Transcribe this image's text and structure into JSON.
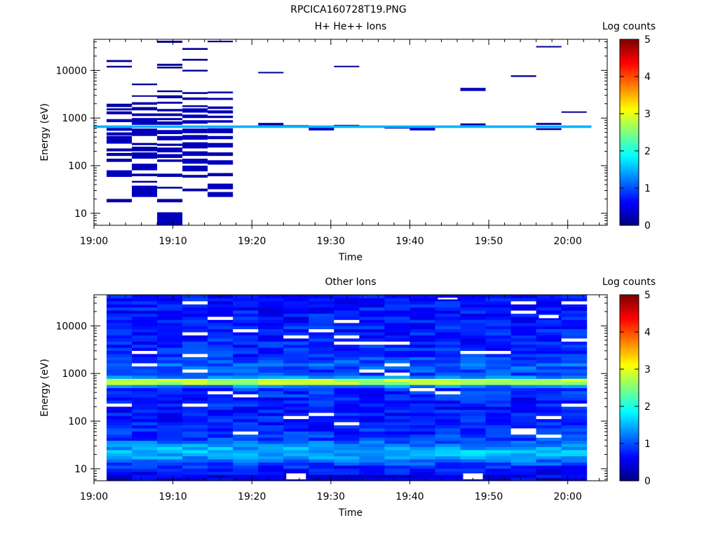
{
  "figure_title": "RPCICA160728T19.PNG",
  "colormap": [
    "#00007f",
    "#0000ff",
    "#007fff",
    "#00ffff",
    "#7fff7f",
    "#ffff00",
    "#ff7f00",
    "#ff0000",
    "#7f0000"
  ],
  "chart_data": [
    {
      "type": "heatmap",
      "title": "H+ He++ Ions",
      "xlabel": "Time",
      "ylabel": "Energy (eV)",
      "y_scale": "log",
      "x_range_min": [
        0,
        65
      ],
      "y_range_ev": [
        5.6,
        45000
      ],
      "x_ticks": [
        {
          "min": 0,
          "label": "19:00"
        },
        {
          "min": 10,
          "label": "19:10"
        },
        {
          "min": 20,
          "label": "19:20"
        },
        {
          "min": 30,
          "label": "19:30"
        },
        {
          "min": 40,
          "label": "19:40"
        },
        {
          "min": 50,
          "label": "19:50"
        },
        {
          "min": 60,
          "label": "20:00"
        }
      ],
      "y_ticks": [
        {
          "ev": 10,
          "label": "10"
        },
        {
          "ev": 100,
          "label": "100"
        },
        {
          "ev": 1000,
          "label": "1000"
        },
        {
          "ev": 10000,
          "label": "10000"
        }
      ],
      "colorbar": {
        "label": "Log counts",
        "range": [
          0,
          5
        ],
        "ticks": [
          "0",
          "1",
          "2",
          "3",
          "4",
          "5"
        ]
      },
      "bands": [
        {
          "e_lo": 620,
          "e_hi": 700,
          "t0": 0,
          "t1": 63,
          "v": 1.5
        }
      ],
      "cells": [
        {
          "t0": 1.6,
          "t1": 4.8,
          "e_lo": 15000,
          "e_hi": 16500,
          "v": 0.1
        },
        {
          "t0": 1.6,
          "t1": 4.8,
          "e_lo": 11500,
          "e_hi": 12500,
          "v": 0.1
        },
        {
          "t0": 1.6,
          "t1": 4.8,
          "e_lo": 1700,
          "e_hi": 2000,
          "v": 0.2
        },
        {
          "t0": 1.6,
          "t1": 4.8,
          "e_lo": 1450,
          "e_hi": 1600,
          "v": 0.2
        },
        {
          "t0": 1.6,
          "t1": 4.8,
          "e_lo": 1200,
          "e_hi": 1380,
          "v": 0.2
        },
        {
          "t0": 1.6,
          "t1": 4.8,
          "e_lo": 820,
          "e_hi": 950,
          "v": 0.3
        },
        {
          "t0": 1.6,
          "t1": 4.8,
          "e_lo": 540,
          "e_hi": 620,
          "v": 0.3
        },
        {
          "t0": 1.6,
          "t1": 4.8,
          "e_lo": 430,
          "e_hi": 500,
          "v": 0.3
        },
        {
          "t0": 1.6,
          "t1": 4.8,
          "e_lo": 290,
          "e_hi": 420,
          "v": 0.3
        },
        {
          "t0": 1.6,
          "t1": 4.8,
          "e_lo": 200,
          "e_hi": 230,
          "v": 0.2
        },
        {
          "t0": 1.6,
          "t1": 4.8,
          "e_lo": 160,
          "e_hi": 185,
          "v": 0.2
        },
        {
          "t0": 1.6,
          "t1": 4.8,
          "e_lo": 120,
          "e_hi": 140,
          "v": 0.2
        },
        {
          "t0": 1.6,
          "t1": 4.8,
          "e_lo": 58,
          "e_hi": 80,
          "v": 0.3
        },
        {
          "t0": 1.6,
          "t1": 4.8,
          "e_lo": 17,
          "e_hi": 20,
          "v": 0.2
        },
        {
          "t0": 4.8,
          "t1": 8.0,
          "e_lo": 4900,
          "e_hi": 5300,
          "v": 0.1
        },
        {
          "t0": 4.8,
          "t1": 8.0,
          "e_lo": 2800,
          "e_hi": 3000,
          "v": 0.1
        },
        {
          "t0": 4.8,
          "t1": 8.0,
          "e_lo": 1900,
          "e_hi": 2150,
          "v": 0.2
        },
        {
          "t0": 4.8,
          "t1": 8.0,
          "e_lo": 1450,
          "e_hi": 1700,
          "v": 0.2
        },
        {
          "t0": 4.8,
          "t1": 8.0,
          "e_lo": 1100,
          "e_hi": 1250,
          "v": 0.2
        },
        {
          "t0": 4.8,
          "t1": 8.0,
          "e_lo": 720,
          "e_hi": 1000,
          "v": 0.3
        },
        {
          "t0": 4.8,
          "t1": 8.0,
          "e_lo": 420,
          "e_hi": 600,
          "v": 0.3
        },
        {
          "t0": 4.8,
          "t1": 8.0,
          "e_lo": 270,
          "e_hi": 300,
          "v": 0.2
        },
        {
          "t0": 4.8,
          "t1": 8.0,
          "e_lo": 200,
          "e_hi": 250,
          "v": 0.2
        },
        {
          "t0": 4.8,
          "t1": 8.0,
          "e_lo": 140,
          "e_hi": 190,
          "v": 0.3
        },
        {
          "t0": 4.8,
          "t1": 8.0,
          "e_lo": 80,
          "e_hi": 110,
          "v": 0.3
        },
        {
          "t0": 4.8,
          "t1": 8.0,
          "e_lo": 60,
          "e_hi": 68,
          "v": 0.2
        },
        {
          "t0": 4.8,
          "t1": 8.0,
          "e_lo": 44,
          "e_hi": 48,
          "v": 0.2
        },
        {
          "t0": 4.8,
          "t1": 8.0,
          "e_lo": 22,
          "e_hi": 38,
          "v": 0.3
        },
        {
          "t0": 8.0,
          "t1": 11.2,
          "e_lo": 38000,
          "e_hi": 42000,
          "v": 0.1
        },
        {
          "t0": 8.0,
          "t1": 11.2,
          "e_lo": 12500,
          "e_hi": 13800,
          "v": 0.1
        },
        {
          "t0": 8.0,
          "t1": 11.2,
          "e_lo": 11000,
          "e_hi": 12000,
          "v": 0.1
        },
        {
          "t0": 8.0,
          "t1": 11.2,
          "e_lo": 3500,
          "e_hi": 3800,
          "v": 0.1
        },
        {
          "t0": 8.0,
          "t1": 11.2,
          "e_lo": 2600,
          "e_hi": 3000,
          "v": 0.2
        },
        {
          "t0": 8.0,
          "t1": 11.2,
          "e_lo": 2000,
          "e_hi": 2200,
          "v": 0.2
        },
        {
          "t0": 8.0,
          "t1": 11.2,
          "e_lo": 1380,
          "e_hi": 1550,
          "v": 0.2
        },
        {
          "t0": 8.0,
          "t1": 11.2,
          "e_lo": 1100,
          "e_hi": 1250,
          "v": 0.2
        },
        {
          "t0": 8.0,
          "t1": 11.2,
          "e_lo": 900,
          "e_hi": 1000,
          "v": 0.2
        },
        {
          "t0": 8.0,
          "t1": 11.2,
          "e_lo": 720,
          "e_hi": 850,
          "v": 0.3
        },
        {
          "t0": 8.0,
          "t1": 11.2,
          "e_lo": 460,
          "e_hi": 560,
          "v": 0.3
        },
        {
          "t0": 8.0,
          "t1": 11.2,
          "e_lo": 340,
          "e_hi": 420,
          "v": 0.3
        },
        {
          "t0": 8.0,
          "t1": 11.2,
          "e_lo": 260,
          "e_hi": 290,
          "v": 0.2
        },
        {
          "t0": 8.0,
          "t1": 11.2,
          "e_lo": 190,
          "e_hi": 240,
          "v": 0.3
        },
        {
          "t0": 8.0,
          "t1": 11.2,
          "e_lo": 145,
          "e_hi": 175,
          "v": 0.3
        },
        {
          "t0": 8.0,
          "t1": 11.2,
          "e_lo": 120,
          "e_hi": 135,
          "v": 0.2
        },
        {
          "t0": 8.0,
          "t1": 11.2,
          "e_lo": 58,
          "e_hi": 68,
          "v": 0.2
        },
        {
          "t0": 8.0,
          "t1": 11.2,
          "e_lo": 33,
          "e_hi": 36,
          "v": 0.2
        },
        {
          "t0": 8.0,
          "t1": 11.2,
          "e_lo": 17,
          "e_hi": 20,
          "v": 0.2
        },
        {
          "t0": 8.0,
          "t1": 11.2,
          "e_lo": 5.6,
          "e_hi": 10.5,
          "v": 0.3
        },
        {
          "t0": 11.2,
          "t1": 14.4,
          "e_lo": 27000,
          "e_hi": 29500,
          "v": 0.1
        },
        {
          "t0": 11.2,
          "t1": 14.4,
          "e_lo": 16000,
          "e_hi": 17500,
          "v": 0.1
        },
        {
          "t0": 11.2,
          "t1": 14.4,
          "e_lo": 9500,
          "e_hi": 10300,
          "v": 0.1
        },
        {
          "t0": 11.2,
          "t1": 14.4,
          "e_lo": 3200,
          "e_hi": 3500,
          "v": 0.2
        },
        {
          "t0": 11.2,
          "t1": 14.4,
          "e_lo": 2400,
          "e_hi": 2700,
          "v": 0.2
        },
        {
          "t0": 11.2,
          "t1": 14.4,
          "e_lo": 1700,
          "e_hi": 1850,
          "v": 0.2
        },
        {
          "t0": 11.2,
          "t1": 14.4,
          "e_lo": 1300,
          "e_hi": 1600,
          "v": 0.3
        },
        {
          "t0": 11.2,
          "t1": 14.4,
          "e_lo": 1000,
          "e_hi": 1180,
          "v": 0.3
        },
        {
          "t0": 11.2,
          "t1": 14.4,
          "e_lo": 760,
          "e_hi": 900,
          "v": 0.3
        },
        {
          "t0": 11.2,
          "t1": 14.4,
          "e_lo": 480,
          "e_hi": 600,
          "v": 0.3
        },
        {
          "t0": 11.2,
          "t1": 14.4,
          "e_lo": 350,
          "e_hi": 440,
          "v": 0.3
        },
        {
          "t0": 11.2,
          "t1": 14.4,
          "e_lo": 230,
          "e_hi": 310,
          "v": 0.3
        },
        {
          "t0": 11.2,
          "t1": 14.4,
          "e_lo": 160,
          "e_hi": 200,
          "v": 0.3
        },
        {
          "t0": 11.2,
          "t1": 14.4,
          "e_lo": 110,
          "e_hi": 140,
          "v": 0.3
        },
        {
          "t0": 11.2,
          "t1": 14.4,
          "e_lo": 76,
          "e_hi": 100,
          "v": 0.3
        },
        {
          "t0": 11.2,
          "t1": 14.4,
          "e_lo": 56,
          "e_hi": 64,
          "v": 0.2
        },
        {
          "t0": 11.2,
          "t1": 14.4,
          "e_lo": 29,
          "e_hi": 33,
          "v": 0.2
        },
        {
          "t0": 14.4,
          "t1": 17.6,
          "e_lo": 39000,
          "e_hi": 42000,
          "v": 0.1
        },
        {
          "t0": 14.4,
          "t1": 17.6,
          "e_lo": 3300,
          "e_hi": 3600,
          "v": 0.2
        },
        {
          "t0": 14.4,
          "t1": 17.6,
          "e_lo": 2400,
          "e_hi": 2650,
          "v": 0.2
        },
        {
          "t0": 14.4,
          "t1": 17.6,
          "e_lo": 1550,
          "e_hi": 1750,
          "v": 0.2
        },
        {
          "t0": 14.4,
          "t1": 17.6,
          "e_lo": 1250,
          "e_hi": 1450,
          "v": 0.3
        },
        {
          "t0": 14.4,
          "t1": 17.6,
          "e_lo": 1000,
          "e_hi": 1120,
          "v": 0.2
        },
        {
          "t0": 14.4,
          "t1": 17.6,
          "e_lo": 800,
          "e_hi": 900,
          "v": 0.3
        },
        {
          "t0": 14.4,
          "t1": 17.6,
          "e_lo": 480,
          "e_hi": 610,
          "v": 0.3
        },
        {
          "t0": 14.4,
          "t1": 17.6,
          "e_lo": 360,
          "e_hi": 420,
          "v": 0.3
        },
        {
          "t0": 14.4,
          "t1": 17.6,
          "e_lo": 240,
          "e_hi": 300,
          "v": 0.3
        },
        {
          "t0": 14.4,
          "t1": 17.6,
          "e_lo": 160,
          "e_hi": 190,
          "v": 0.2
        },
        {
          "t0": 14.4,
          "t1": 17.6,
          "e_lo": 105,
          "e_hi": 130,
          "v": 0.3
        },
        {
          "t0": 14.4,
          "t1": 17.6,
          "e_lo": 60,
          "e_hi": 70,
          "v": 0.2
        },
        {
          "t0": 14.4,
          "t1": 17.6,
          "e_lo": 32,
          "e_hi": 42,
          "v": 0.3
        },
        {
          "t0": 14.4,
          "t1": 17.6,
          "e_lo": 22,
          "e_hi": 28,
          "v": 0.3
        },
        {
          "t0": 20.8,
          "t1": 24.0,
          "e_lo": 8700,
          "e_hi": 9300,
          "v": 0.1
        },
        {
          "t0": 20.8,
          "t1": 24.0,
          "e_lo": 700,
          "e_hi": 790,
          "v": 0.2
        },
        {
          "t0": 24.0,
          "t1": 27.2,
          "e_lo": 640,
          "e_hi": 710,
          "v": 0.2
        },
        {
          "t0": 27.2,
          "t1": 30.4,
          "e_lo": 550,
          "e_hi": 640,
          "v": 0.3
        },
        {
          "t0": 30.4,
          "t1": 33.6,
          "e_lo": 11700,
          "e_hi": 12500,
          "v": 0.1
        },
        {
          "t0": 30.4,
          "t1": 33.6,
          "e_lo": 640,
          "e_hi": 720,
          "v": 0.2
        },
        {
          "t0": 36.8,
          "t1": 40.0,
          "e_lo": 600,
          "e_hi": 660,
          "v": 0.2
        },
        {
          "t0": 40.0,
          "t1": 43.2,
          "e_lo": 550,
          "e_hi": 650,
          "v": 0.3
        },
        {
          "t0": 46.4,
          "t1": 49.6,
          "e_lo": 3700,
          "e_hi": 4300,
          "v": 0.3
        },
        {
          "t0": 46.4,
          "t1": 49.6,
          "e_lo": 700,
          "e_hi": 770,
          "v": 0.2
        },
        {
          "t0": 52.8,
          "t1": 56.0,
          "e_lo": 7300,
          "e_hi": 7900,
          "v": 0.1
        },
        {
          "t0": 56.0,
          "t1": 59.2,
          "e_lo": 30500,
          "e_hi": 32500,
          "v": 0.1
        },
        {
          "t0": 56.0,
          "t1": 59.2,
          "e_lo": 720,
          "e_hi": 790,
          "v": 0.2
        },
        {
          "t0": 56.0,
          "t1": 59.2,
          "e_lo": 560,
          "e_hi": 610,
          "v": 0.2
        },
        {
          "t0": 59.2,
          "t1": 62.4,
          "e_lo": 1290,
          "e_hi": 1380,
          "v": 0.1
        }
      ]
    },
    {
      "type": "heatmap",
      "title": "Other Ions",
      "xlabel": "Time",
      "ylabel": "Energy (eV)",
      "y_scale": "log",
      "x_range_min": [
        0,
        65
      ],
      "y_range_ev": [
        5.6,
        45000
      ],
      "x_ticks": [
        {
          "min": 0,
          "label": "19:00"
        },
        {
          "min": 10,
          "label": "19:10"
        },
        {
          "min": 20,
          "label": "19:20"
        },
        {
          "min": 30,
          "label": "19:30"
        },
        {
          "min": 40,
          "label": "19:40"
        },
        {
          "min": 50,
          "label": "19:50"
        },
        {
          "min": 60,
          "label": "20:00"
        }
      ],
      "y_ticks": [
        {
          "ev": 10,
          "label": "10"
        },
        {
          "ev": 100,
          "label": "100"
        },
        {
          "ev": 1000,
          "label": "1000"
        },
        {
          "ev": 10000,
          "label": "10000"
        }
      ],
      "colorbar": {
        "label": "Log counts",
        "range": [
          0,
          5
        ],
        "ticks": [
          "0",
          "1",
          "2",
          "3",
          "4",
          "5"
        ]
      },
      "time_bins": {
        "start": 1.6,
        "width": 3.2,
        "count": 19
      },
      "energy_rows": {
        "count": 60
      },
      "level_profile": [
        {
          "e": 5.6,
          "v": 0.5
        },
        {
          "e": 10,
          "v": 0.7
        },
        {
          "e": 14,
          "v": 1.1
        },
        {
          "e": 18,
          "v": 1.4
        },
        {
          "e": 24,
          "v": 1.55
        },
        {
          "e": 30,
          "v": 1.35
        },
        {
          "e": 40,
          "v": 1.0
        },
        {
          "e": 60,
          "v": 0.8
        },
        {
          "e": 100,
          "v": 0.75
        },
        {
          "e": 300,
          "v": 0.75
        },
        {
          "e": 500,
          "v": 0.9
        },
        {
          "e": 560,
          "v": 1.4
        },
        {
          "e": 600,
          "v": 2.3
        },
        {
          "e": 640,
          "v": 2.9
        },
        {
          "e": 680,
          "v": 3.1
        },
        {
          "e": 720,
          "v": 2.9
        },
        {
          "e": 780,
          "v": 2.2
        },
        {
          "e": 850,
          "v": 1.3
        },
        {
          "e": 1000,
          "v": 0.9
        },
        {
          "e": 1500,
          "v": 1.1
        },
        {
          "e": 2500,
          "v": 0.8
        },
        {
          "e": 10000,
          "v": 0.75
        },
        {
          "e": 45000,
          "v": 0.7
        }
      ],
      "empty_pixels": [
        {
          "bin": 7,
          "e_lo": 6,
          "e_hi": 8
        },
        {
          "bin": 14,
          "e_lo": 6,
          "e_hi": 8
        },
        {
          "bin": 17,
          "e_lo": 14500,
          "e_hi": 17000
        },
        {
          "bin": 13,
          "e_lo": 36000,
          "e_hi": 39000
        }
      ]
    }
  ]
}
